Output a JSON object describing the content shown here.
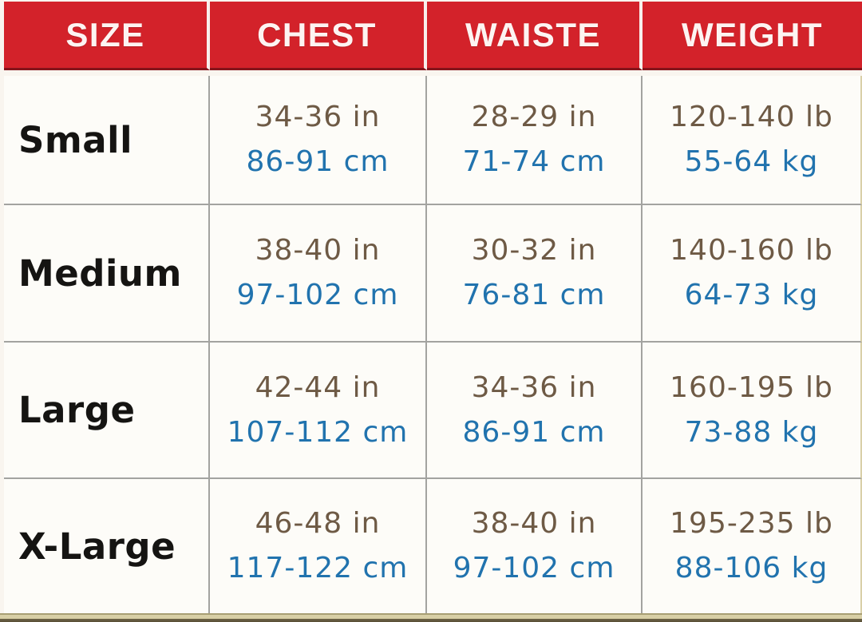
{
  "chart_data": {
    "type": "table",
    "columns": [
      "SIZE",
      "CHEST",
      "WAISTE",
      "WEIGHT"
    ],
    "rows": [
      {
        "size": "Small",
        "chest_in": "34-36 in",
        "chest_cm": "86-91 cm",
        "waiste_in": "28-29 in",
        "waiste_cm": "71-74 cm",
        "weight_lb": "120-140 lb",
        "weight_kg": "55-64 kg"
      },
      {
        "size": "Medium",
        "chest_in": "38-40 in",
        "chest_cm": "97-102 cm",
        "waiste_in": "30-32 in",
        "waiste_cm": "76-81 cm",
        "weight_lb": "140-160 lb",
        "weight_kg": "64-73 kg"
      },
      {
        "size": "Large",
        "chest_in": "42-44 in",
        "chest_cm": "107-112 cm",
        "waiste_in": "34-36 in",
        "waiste_cm": "86-91 cm",
        "weight_lb": "160-195 lb",
        "weight_kg": "73-88 kg"
      },
      {
        "size": "X-Large",
        "chest_in": "46-48 in",
        "chest_cm": "117-122 cm",
        "waiste_in": "38-40 in",
        "waiste_cm": "97-102 cm",
        "weight_lb": "195-235 lb",
        "weight_kg": "88-106 kg"
      }
    ],
    "layout_hints": {
      "header_position": "top",
      "grid": "on",
      "units_line1": "imperial",
      "units_line2": "metric"
    }
  },
  "colors": {
    "header_bg": "#d3222a",
    "header_border_bottom": "#85131a",
    "header_text": "#fdf4f2",
    "imperial_text": "#6e5a45",
    "metric_text": "#2173ae",
    "size_text": "#151412",
    "grid_line": "#a3a3a0",
    "cell_bg": "#fdfcf8",
    "page_bg": "#f9f5ef",
    "bottom_strip_tan": "#d8cfa6",
    "bottom_strip_dark": "#584e35"
  }
}
